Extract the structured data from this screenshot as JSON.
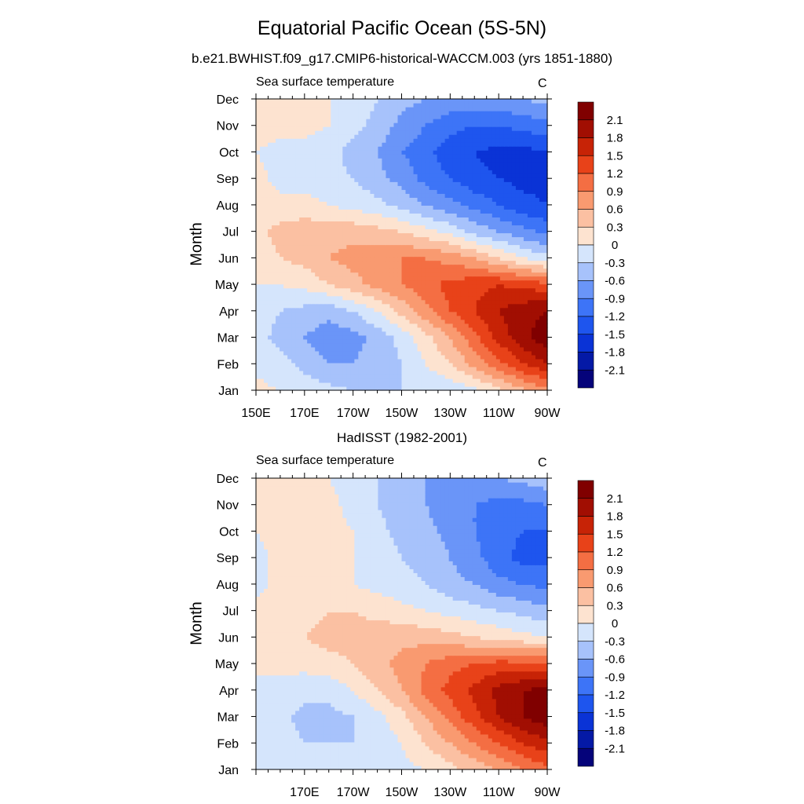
{
  "title": "Equatorial Pacific Ocean (5S-5N)",
  "colorbar": {
    "levels": [
      -2.1,
      -1.8,
      -1.5,
      -1.2,
      -0.9,
      -0.6,
      -0.3,
      0,
      0.3,
      0.6,
      0.9,
      1.2,
      1.5,
      1.8,
      2.1
    ],
    "labels": [
      "2.1",
      "1.8",
      "1.5",
      "1.2",
      "0.9",
      "0.6",
      "0.3",
      "0",
      "-0.3",
      "-0.6",
      "-0.9",
      "-1.2",
      "-1.5",
      "-1.8",
      "-2.1"
    ],
    "colors": [
      "#05037a",
      "#0419a6",
      "#0a33d6",
      "#1e55ee",
      "#3d74f7",
      "#6a95f8",
      "#a7c2fb",
      "#d5e5fc",
      "#fde3d0",
      "#fbc0a2",
      "#f99a70",
      "#f46e43",
      "#e84219",
      "#c72306",
      "#a10e02",
      "#800000"
    ]
  },
  "chart_data": [
    {
      "type": "heatmap",
      "subtitle": "b.e21.BWHIST.f09_g17.CMIP6-historical-WACCM.003 (yrs 1851-1880)",
      "left_label": "Sea surface temperature",
      "right_label": "C",
      "ylabel": "Month",
      "xlabel": "",
      "x_tick_labels": [
        "150E",
        "170E",
        "170W",
        "150W",
        "130W",
        "110W",
        "90W"
      ],
      "y_tick_labels": [
        "Jan",
        "Feb",
        "Mar",
        "Apr",
        "May",
        "Jun",
        "Jul",
        "Aug",
        "Sep",
        "Oct",
        "Nov",
        "Dec"
      ],
      "xlim": [
        150,
        270
      ],
      "x": [
        150,
        160,
        170,
        180,
        190,
        200,
        210,
        220,
        230,
        240,
        250,
        260,
        270
      ],
      "y": [
        "Jan",
        "Feb",
        "Mar",
        "Apr",
        "May",
        "Jun",
        "Jul",
        "Aug",
        "Sep",
        "Oct",
        "Nov",
        "Dec"
      ],
      "z": [
        [
          0.1,
          0.0,
          -0.1,
          -0.2,
          -0.3,
          -0.3,
          -0.3,
          -0.3,
          -0.2,
          -0.1,
          0.2,
          0.5,
          0.8
        ],
        [
          -0.1,
          -0.2,
          -0.4,
          -0.6,
          -0.6,
          -0.5,
          -0.3,
          0.0,
          0.3,
          0.7,
          1.1,
          1.5,
          1.8
        ],
        [
          -0.2,
          -0.4,
          -0.6,
          -0.8,
          -0.7,
          -0.5,
          -0.2,
          0.2,
          0.6,
          1.1,
          1.6,
          2.0,
          2.3
        ],
        [
          -0.1,
          -0.3,
          -0.4,
          -0.5,
          -0.3,
          0.0,
          0.4,
          0.8,
          1.2,
          1.5,
          1.8,
          2.0,
          2.1
        ],
        [
          0.0,
          0.0,
          0.1,
          0.3,
          0.5,
          0.7,
          0.9,
          1.1,
          1.3,
          1.4,
          1.5,
          1.4,
          1.3
        ],
        [
          0.1,
          0.3,
          0.4,
          0.6,
          0.7,
          0.8,
          0.9,
          0.9,
          0.8,
          0.6,
          0.3,
          0.0,
          -0.2
        ],
        [
          0.2,
          0.4,
          0.5,
          0.5,
          0.5,
          0.4,
          0.3,
          0.1,
          -0.1,
          -0.4,
          -0.6,
          -0.8,
          -1.0
        ],
        [
          0.1,
          0.1,
          0.1,
          0.0,
          -0.1,
          -0.2,
          -0.4,
          -0.6,
          -0.8,
          -1.0,
          -1.2,
          -1.4,
          -1.5
        ],
        [
          0.1,
          -0.1,
          -0.1,
          -0.2,
          -0.3,
          -0.5,
          -0.7,
          -1.0,
          -1.2,
          -1.4,
          -1.5,
          -1.6,
          -1.6
        ],
        [
          0.0,
          -0.1,
          -0.1,
          -0.2,
          -0.4,
          -0.6,
          -0.9,
          -1.1,
          -1.4,
          -1.5,
          -1.6,
          -1.6,
          -1.5
        ],
        [
          0.1,
          0.1,
          0.1,
          0.0,
          -0.2,
          -0.4,
          -0.7,
          -0.9,
          -1.1,
          -1.2,
          -1.2,
          -1.1,
          -1.0
        ],
        [
          0.1,
          0.1,
          0.1,
          0.0,
          -0.1,
          -0.3,
          -0.5,
          -0.6,
          -0.7,
          -0.7,
          -0.7,
          -0.6,
          -0.5
        ]
      ]
    },
    {
      "type": "heatmap",
      "subtitle": "HadISST (1982-2001)",
      "left_label": "Sea surface temperature",
      "right_label": "C",
      "ylabel": "Month",
      "xlabel": "",
      "x_tick_labels": [
        "170E",
        "170W",
        "150W",
        "130W",
        "110W",
        "90W"
      ],
      "y_tick_labels": [
        "Jan",
        "Feb",
        "Mar",
        "Apr",
        "May",
        "Jun",
        "Jul",
        "Aug",
        "Sep",
        "Oct",
        "Nov",
        "Dec"
      ],
      "xlim": [
        150,
        270
      ],
      "x": [
        150,
        160,
        170,
        180,
        190,
        200,
        210,
        220,
        230,
        240,
        250,
        260,
        270
      ],
      "y": [
        "Jan",
        "Feb",
        "Mar",
        "Apr",
        "May",
        "Jun",
        "Jul",
        "Aug",
        "Sep",
        "Oct",
        "Nov",
        "Dec"
      ],
      "z": [
        [
          0.0,
          -0.1,
          -0.2,
          -0.2,
          -0.2,
          -0.2,
          -0.1,
          0.0,
          0.2,
          0.4,
          0.6,
          0.9,
          1.1
        ],
        [
          -0.1,
          -0.2,
          -0.3,
          -0.3,
          -0.3,
          -0.2,
          0.0,
          0.3,
          0.6,
          0.9,
          1.2,
          1.5,
          1.7
        ],
        [
          -0.1,
          -0.2,
          -0.4,
          -0.4,
          -0.3,
          -0.1,
          0.2,
          0.6,
          1.0,
          1.4,
          1.8,
          2.1,
          2.3
        ],
        [
          0.0,
          -0.1,
          -0.2,
          -0.2,
          0.0,
          0.3,
          0.6,
          1.0,
          1.3,
          1.6,
          1.9,
          2.1,
          2.2
        ],
        [
          0.0,
          0.1,
          0.1,
          0.2,
          0.3,
          0.5,
          0.7,
          0.9,
          1.1,
          1.2,
          1.3,
          1.3,
          1.3
        ],
        [
          0.1,
          0.2,
          0.3,
          0.4,
          0.4,
          0.5,
          0.5,
          0.5,
          0.4,
          0.3,
          0.2,
          0.1,
          0.0
        ],
        [
          0.1,
          0.2,
          0.2,
          0.3,
          0.3,
          0.2,
          0.1,
          0.0,
          -0.1,
          -0.2,
          -0.3,
          -0.4,
          -0.5
        ],
        [
          -0.1,
          0.1,
          0.1,
          0.1,
          0.0,
          -0.1,
          -0.2,
          -0.3,
          -0.5,
          -0.6,
          -0.8,
          -0.9,
          -1.0
        ],
        [
          -0.1,
          0.1,
          0.2,
          0.1,
          0.0,
          -0.1,
          -0.3,
          -0.4,
          -0.6,
          -0.8,
          -1.1,
          -1.3,
          -1.3
        ],
        [
          0.0,
          0.1,
          0.1,
          0.1,
          0.0,
          -0.2,
          -0.4,
          -0.5,
          -0.7,
          -0.9,
          -1.1,
          -1.2,
          -1.2
        ],
        [
          0.1,
          0.1,
          0.1,
          0.1,
          -0.1,
          -0.3,
          -0.5,
          -0.6,
          -0.8,
          -0.9,
          -1.0,
          -1.0,
          -0.9
        ],
        [
          0.1,
          0.1,
          0.1,
          0.0,
          -0.2,
          -0.3,
          -0.5,
          -0.6,
          -0.7,
          -0.7,
          -0.6,
          -0.5,
          -0.4
        ]
      ]
    }
  ]
}
